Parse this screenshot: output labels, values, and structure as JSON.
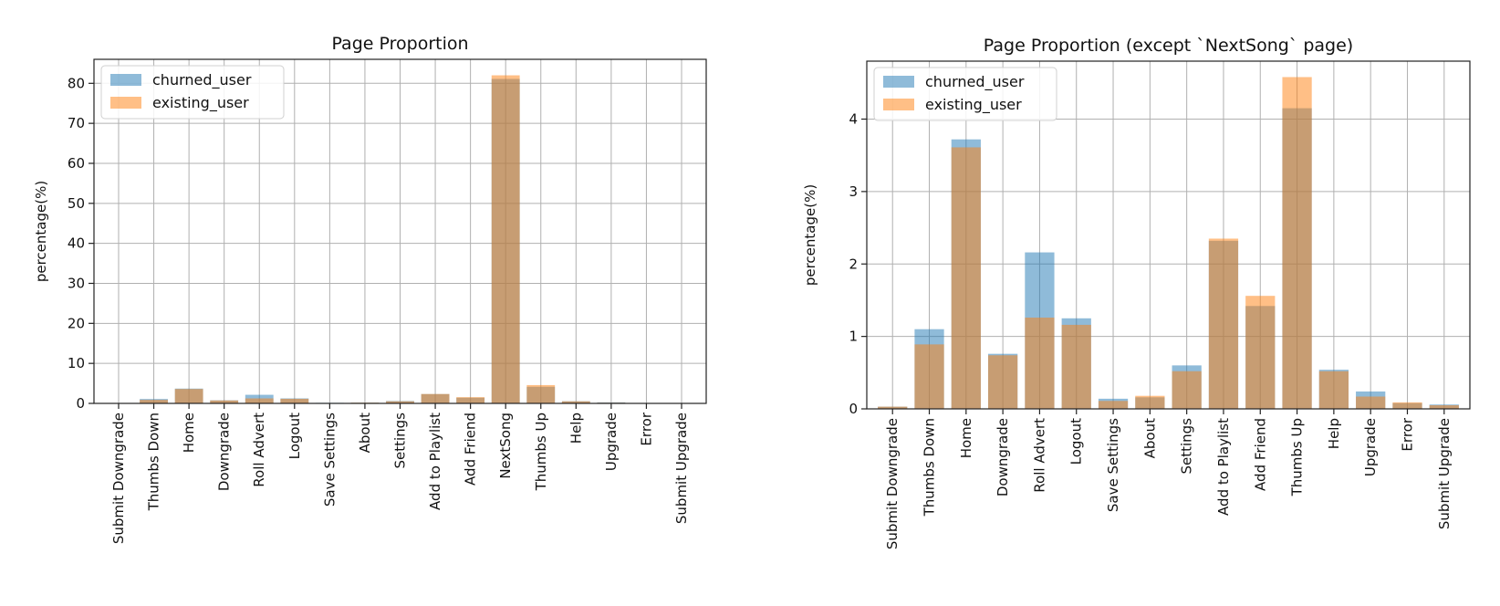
{
  "colors": {
    "churned": "#1f77b4",
    "existing": "#ff7f0e"
  },
  "chart_data": [
    {
      "type": "bar",
      "title": "Page Proportion",
      "ylabel": "percentage(%)",
      "xlabel": "",
      "ylim": [
        0,
        86
      ],
      "yticks": [
        0,
        10,
        20,
        30,
        40,
        50,
        60,
        70,
        80
      ],
      "grid": true,
      "legend": "top-left",
      "categories": [
        "Submit Downgrade",
        "Thumbs Down",
        "Home",
        "Downgrade",
        "Roll Advert",
        "Logout",
        "Save Settings",
        "About",
        "Settings",
        "Add to Playlist",
        "Add Friend",
        "NextSong",
        "Thumbs Up",
        "Help",
        "Upgrade",
        "Error",
        "Submit Upgrade"
      ],
      "series": [
        {
          "name": "churned_user",
          "values": [
            0.03,
            1.1,
            3.7,
            0.76,
            2.15,
            1.25,
            0.14,
            0.16,
            0.6,
            2.33,
            1.42,
            81.1,
            4.15,
            0.54,
            0.24,
            0.08,
            0.06
          ]
        },
        {
          "name": "existing_user",
          "values": [
            0.03,
            0.88,
            3.6,
            0.74,
            1.25,
            1.15,
            0.11,
            0.18,
            0.52,
            2.35,
            1.56,
            82.0,
            4.58,
            0.52,
            0.17,
            0.09,
            0.05
          ]
        }
      ]
    },
    {
      "type": "bar",
      "title": "Page Proportion (except `NextSong` page)",
      "ylabel": "percentage(%)",
      "xlabel": "",
      "ylim": [
        0,
        4.8
      ],
      "yticks": [
        0,
        1,
        2,
        3,
        4
      ],
      "grid": true,
      "legend": "top-left",
      "categories": [
        "Submit Downgrade",
        "Thumbs Down",
        "Home",
        "Downgrade",
        "Roll Advert",
        "Logout",
        "Save Settings",
        "About",
        "Settings",
        "Add to Playlist",
        "Add Friend",
        "Thumbs Up",
        "Help",
        "Upgrade",
        "Error",
        "Submit Upgrade"
      ],
      "series": [
        {
          "name": "churned_user",
          "values": [
            0.03,
            1.1,
            3.72,
            0.76,
            2.16,
            1.25,
            0.14,
            0.16,
            0.6,
            2.32,
            1.42,
            4.15,
            0.54,
            0.24,
            0.08,
            0.06
          ]
        },
        {
          "name": "existing_user",
          "values": [
            0.03,
            0.89,
            3.61,
            0.74,
            1.26,
            1.16,
            0.11,
            0.18,
            0.52,
            2.35,
            1.56,
            4.58,
            0.52,
            0.17,
            0.09,
            0.05
          ]
        }
      ]
    }
  ]
}
